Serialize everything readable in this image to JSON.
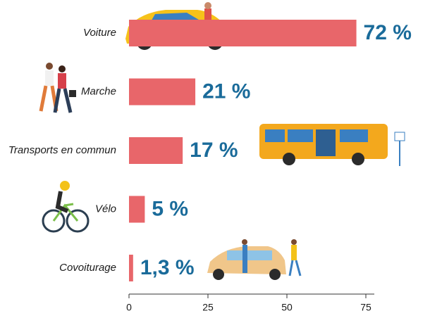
{
  "chart_data": {
    "type": "bar",
    "orientation": "horizontal",
    "categories": [
      "Voiture",
      "Marche",
      "Transports en commun",
      "Vélo",
      "Covoiturage"
    ],
    "values": [
      72,
      21,
      17,
      5,
      1.3
    ],
    "value_labels": [
      "72 %",
      "21 %",
      "17 %",
      "5 %",
      "1,3 %"
    ],
    "color": "#e8666a",
    "xlim": [
      0,
      75
    ],
    "xticks": [
      0,
      25,
      50,
      75
    ]
  }
}
